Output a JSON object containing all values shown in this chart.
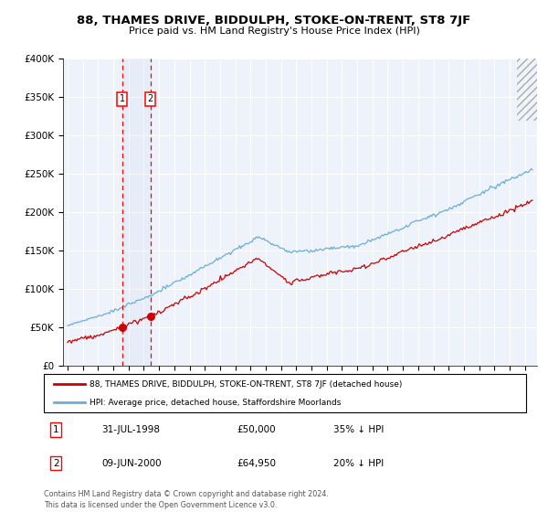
{
  "title": "88, THAMES DRIVE, BIDDULPH, STOKE-ON-TRENT, ST8 7JF",
  "subtitle": "Price paid vs. HM Land Registry's House Price Index (HPI)",
  "ylim": [
    0,
    400000
  ],
  "yticks": [
    0,
    50000,
    100000,
    150000,
    200000,
    250000,
    300000,
    350000,
    400000
  ],
  "ytick_labels": [
    "£0",
    "£50K",
    "£100K",
    "£150K",
    "£200K",
    "£250K",
    "£300K",
    "£350K",
    "£400K"
  ],
  "hpi_color": "#6baed6",
  "price_color": "#cc0000",
  "plot_bg": "#eef2fa",
  "transaction1_date": 1998.58,
  "transaction1_price": 50000,
  "transaction2_date": 2000.44,
  "transaction2_price": 64950,
  "legend_label_price": "88, THAMES DRIVE, BIDDULPH, STOKE-ON-TRENT, ST8 7JF (detached house)",
  "legend_label_hpi": "HPI: Average price, detached house, Staffordshire Moorlands",
  "footnote": "Contains HM Land Registry data © Crown copyright and database right 2024.\nThis data is licensed under the Open Government Licence v3.0.",
  "table_rows": [
    {
      "num": "1",
      "date": "31-JUL-1998",
      "price": "£50,000",
      "rel": "35% ↓ HPI"
    },
    {
      "num": "2",
      "date": "09-JUN-2000",
      "price": "£64,950",
      "rel": "20% ↓ HPI"
    }
  ],
  "xstart": 1995,
  "xend": 2025
}
